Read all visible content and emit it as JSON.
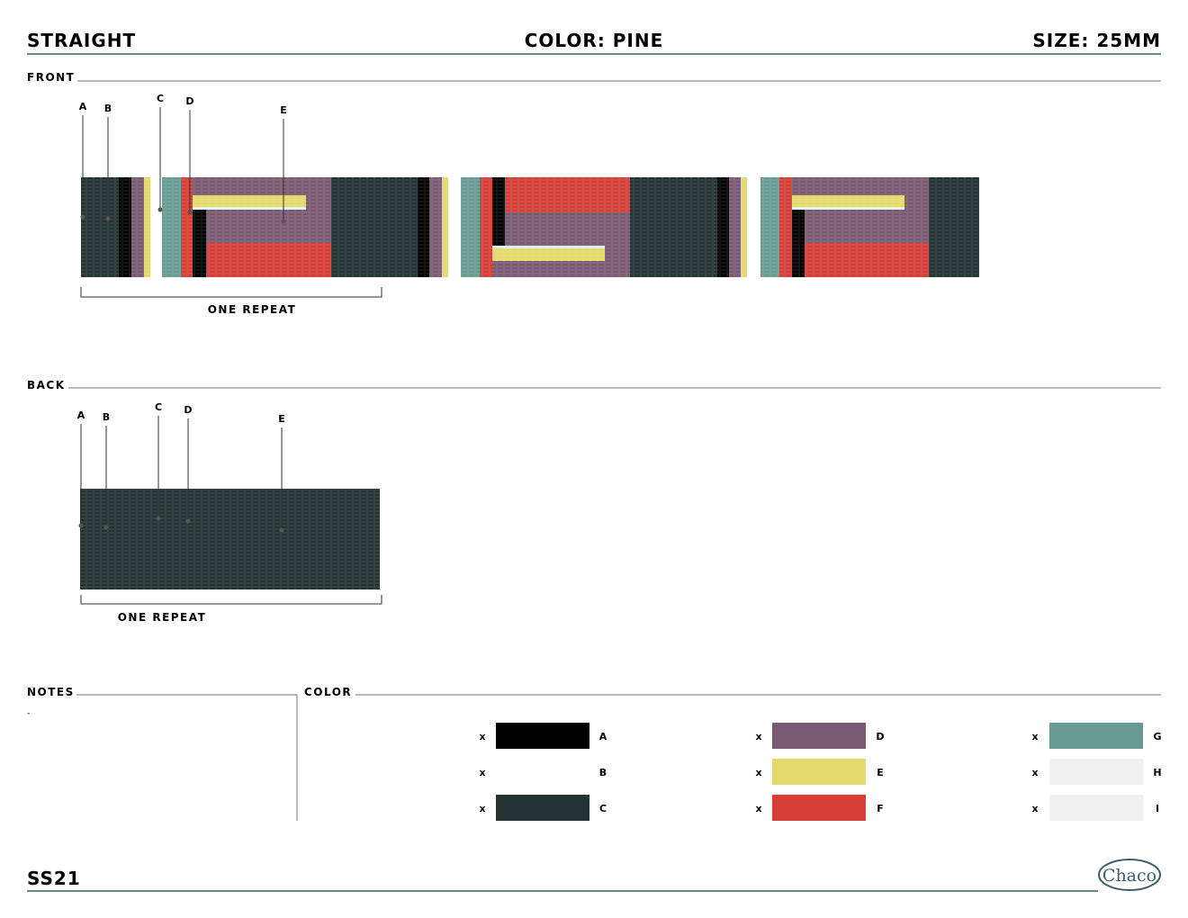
{
  "header": {
    "style": "STRAIGHT",
    "color": "COLOR: PINE",
    "size": "SIZE: 25MM"
  },
  "front": {
    "label": "FRONT",
    "callouts": [
      "A",
      "B",
      "C",
      "D",
      "E"
    ],
    "repeat": "ONE REPEAT"
  },
  "back": {
    "label": "BACK",
    "callouts": [
      "A",
      "B",
      "C",
      "D",
      "E"
    ],
    "repeat": "ONE REPEAT"
  },
  "notes": {
    "label": "NOTES",
    "text": "-"
  },
  "color": {
    "label": "COLOR",
    "swatches": [
      {
        "qty": "x",
        "code": "A",
        "color": "#000000"
      },
      {
        "qty": "x",
        "code": "B",
        "color": "#ffffff"
      },
      {
        "qty": "x",
        "code": "C",
        "color": "#243234"
      },
      {
        "qty": "x",
        "code": "D",
        "color": "#7a5a72"
      },
      {
        "qty": "x",
        "code": "E",
        "color": "#e4d96c"
      },
      {
        "qty": "x",
        "code": "F",
        "color": "#d53f37"
      },
      {
        "qty": "x",
        "code": "G",
        "color": "#679a92"
      },
      {
        "qty": "x",
        "code": "H",
        "color": "#f0f0f0"
      },
      {
        "qty": "x",
        "code": "I",
        "color": "#f0f0f0"
      }
    ]
  },
  "footer": {
    "season": "SS21",
    "logo": "Chaco"
  }
}
